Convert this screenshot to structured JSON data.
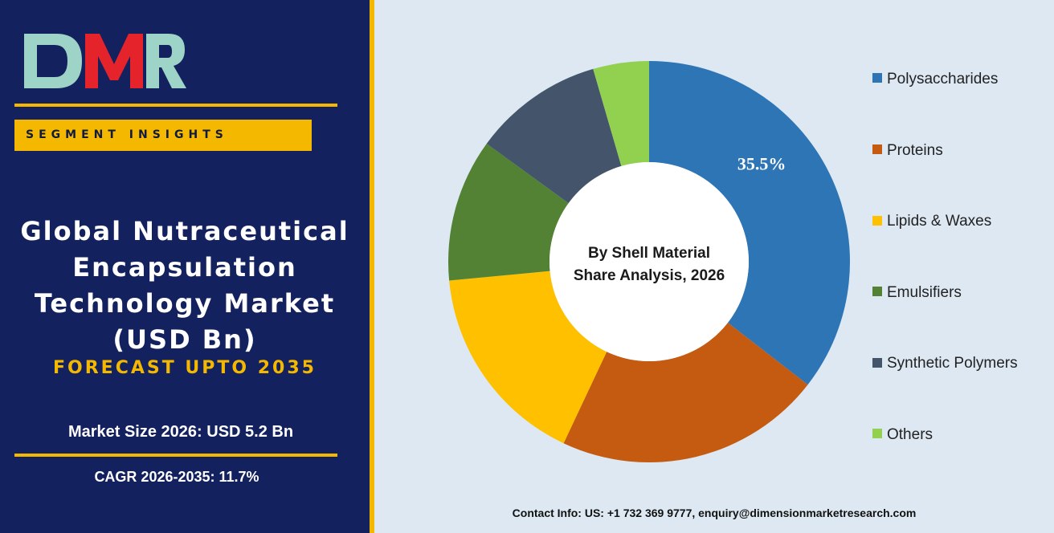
{
  "logo": {
    "text": "DMR"
  },
  "badge": {
    "label": "SEGMENT INSIGHTS"
  },
  "title": {
    "text": "Global Nutraceutical\nEncapsulation\nTechnology Market\n(USD Bn)"
  },
  "forecast": {
    "text": "FORECAST UPTO 2035"
  },
  "stats": {
    "market_size": "Market Size 2026: USD 5.2 Bn",
    "cagr": "CAGR 2026-2035: 11.7%"
  },
  "contact": {
    "text": "Contact Info: US: +1 732 369 9777, enquiry@dimensionmarketresearch.com"
  },
  "colors": {
    "navy": "#13215e",
    "gold": "#f5b800",
    "logo_red": "#e5232b",
    "logo_teal": "#9ed3c7"
  },
  "chart_data": {
    "type": "pie",
    "donut": true,
    "center_label": [
      "By Shell Material",
      "Share Analysis, 2026"
    ],
    "categories": [
      "Polysaccharides",
      "Proteins",
      "Lipids & Waxes",
      "Emulsifiers",
      "Synthetic Polymers",
      "Others"
    ],
    "values": [
      35.5,
      21.5,
      16.5,
      11.5,
      10.5,
      4.5
    ],
    "colors": [
      "#2e75b6",
      "#c55a11",
      "#ffc000",
      "#548235",
      "#44546a",
      "#92d050"
    ],
    "data_labels": [
      "35.5%",
      "",
      "",
      "",
      "",
      ""
    ],
    "legend_position": "right"
  }
}
